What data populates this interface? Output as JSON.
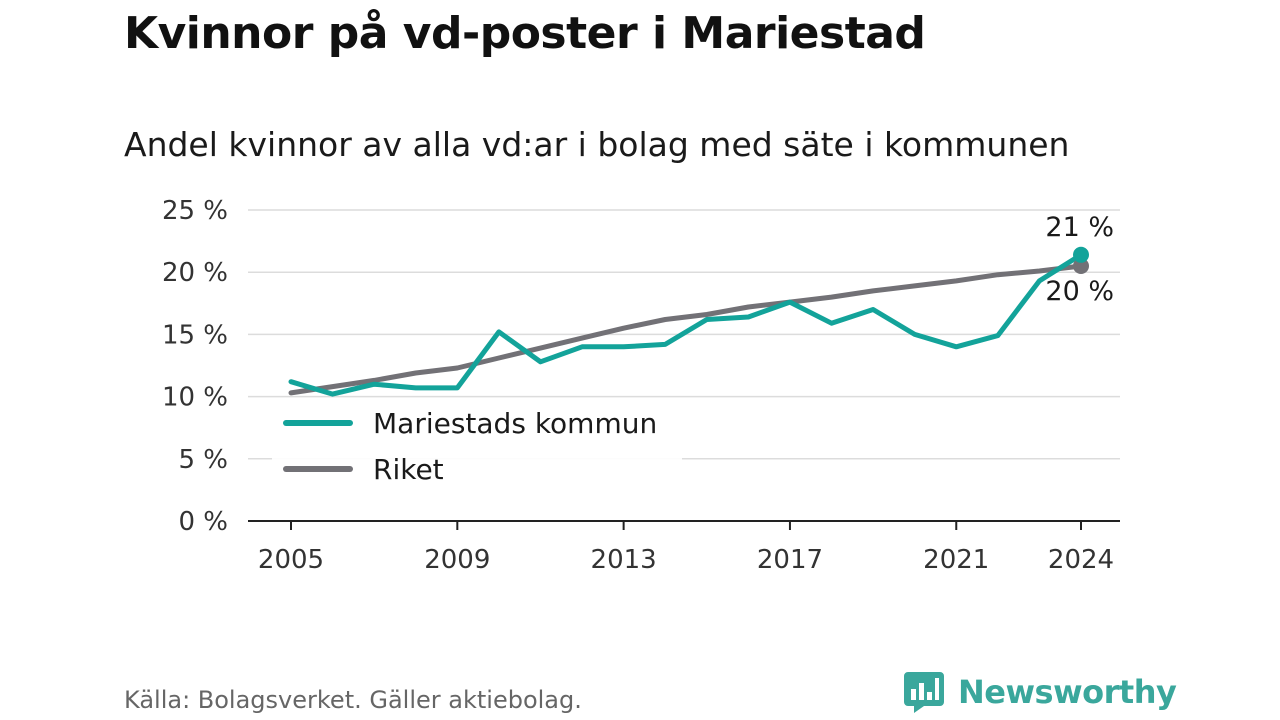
{
  "title": "Kvinnor på vd-poster i Mariestad",
  "subtitle": "Andel kvinnor av alla vd:ar i bolag med säte i kommunen",
  "source": "Källa: Bolagsverket. Gäller aktiebolag.",
  "brand": {
    "name": "Newsworthy",
    "icon": "newsworthy-logo-icon"
  },
  "chart_data": {
    "type": "line",
    "title": "Kvinnor på vd-poster i Mariestad",
    "subtitle": "Andel kvinnor av alla vd:ar i bolag med säte i kommunen",
    "xlabel": "",
    "ylabel": "",
    "xlim": [
      2005,
      2024
    ],
    "ylim": [
      0,
      25
    ],
    "x_ticks": [
      "2005",
      "2009",
      "2013",
      "2017",
      "2021",
      "2024"
    ],
    "y_ticks": [
      "0 %",
      "5 %",
      "10 %",
      "15 %",
      "20 %",
      "25 %"
    ],
    "grid": "horizontal",
    "legend_position": "bottom-left",
    "x": [
      2005,
      2006,
      2007,
      2008,
      2009,
      2010,
      2011,
      2012,
      2013,
      2014,
      2015,
      2016,
      2017,
      2018,
      2019,
      2020,
      2021,
      2022,
      2023,
      2024
    ],
    "series": [
      {
        "name": "Mariestads kommun",
        "color": "#13a39a",
        "values": [
          11.2,
          10.2,
          11.0,
          10.7,
          10.7,
          15.2,
          12.8,
          14.0,
          14.0,
          14.2,
          16.2,
          16.4,
          17.6,
          15.9,
          17.0,
          15.0,
          14.0,
          14.9,
          19.3,
          21.4
        ],
        "end_label": "21 %"
      },
      {
        "name": "Riket",
        "color": "#727176",
        "values": [
          10.3,
          10.8,
          11.3,
          11.9,
          12.3,
          13.1,
          13.9,
          14.7,
          15.5,
          16.2,
          16.6,
          17.2,
          17.6,
          18.0,
          18.5,
          18.9,
          19.3,
          19.8,
          20.1,
          20.5
        ],
        "end_label": "20 %"
      }
    ]
  }
}
